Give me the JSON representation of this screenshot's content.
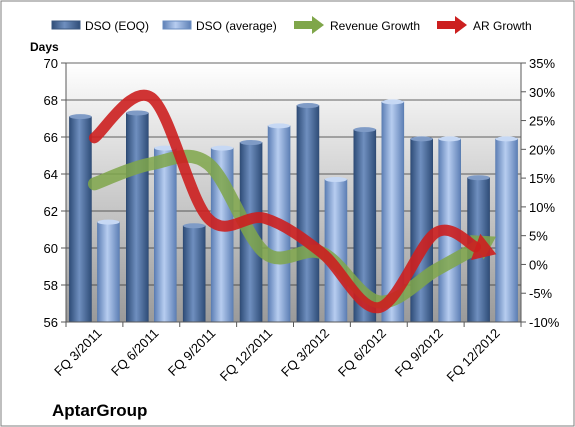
{
  "chart_data": {
    "type": "bar",
    "categories": [
      "FQ 3/2011",
      "FQ 6/2011",
      "FQ 9/2011",
      "FQ 12/2011",
      "FQ 3/2012",
      "FQ 6/2012",
      "FQ 9/2012",
      "FQ 12/2012"
    ],
    "series": [
      {
        "name": "DSO (EOQ)",
        "type": "bar",
        "axis": "left",
        "color": "#4a6a96",
        "values": [
          67.1,
          67.3,
          61.2,
          65.7,
          67.7,
          66.4,
          65.9,
          63.8
        ]
      },
      {
        "name": "DSO (average)",
        "type": "bar",
        "axis": "left",
        "color": "#8eaede",
        "values": [
          61.4,
          65.4,
          65.4,
          66.6,
          63.7,
          67.9,
          65.9,
          65.9
        ]
      },
      {
        "name": "Revenue Growth",
        "type": "line",
        "axis": "right",
        "color": "#7fa64a",
        "values": [
          14,
          17.5,
          17.5,
          2,
          2,
          -6.5,
          -1,
          4.5
        ]
      },
      {
        "name": "AR Growth",
        "type": "line",
        "axis": "right",
        "color": "#cc1f1f",
        "values": [
          22,
          29,
          8,
          8,
          2,
          -7.5,
          5.5,
          2
        ]
      }
    ],
    "ylabel": "Days",
    "ylim": [
      56,
      70
    ],
    "yticks": [
      "56",
      "58",
      "60",
      "62",
      "64",
      "66",
      "68",
      "70"
    ],
    "y2lim": [
      -10,
      35
    ],
    "y2ticks": [
      "-10%",
      "-5%",
      "0%",
      "5%",
      "10%",
      "15%",
      "20%",
      "25%",
      "30%",
      "35%"
    ],
    "grid": true,
    "legend_position": "top",
    "company": "AptarGroup"
  }
}
